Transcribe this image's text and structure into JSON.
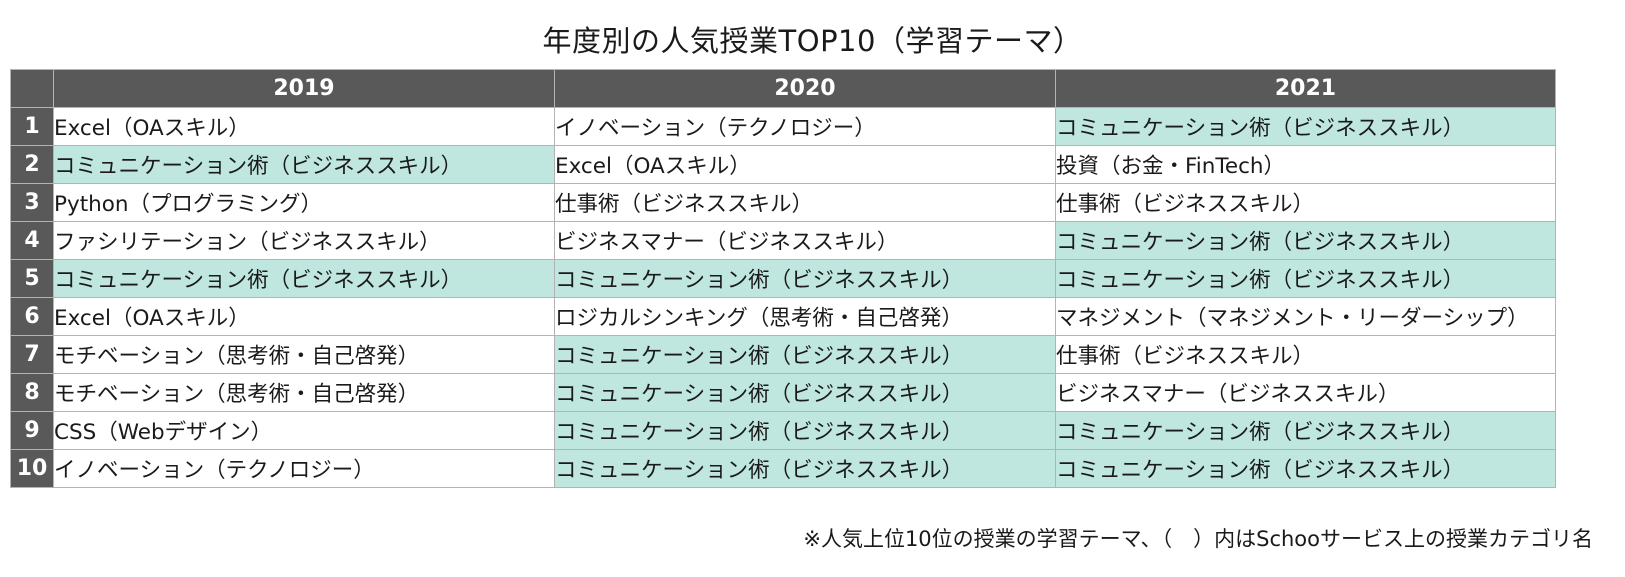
{
  "title": "年度別の人気授業TOP10（学習テーマ）",
  "colors": {
    "header_bg": "#595959",
    "header_text": "#ffffff",
    "highlight": "#bfe7e0",
    "highlight_meaning": "コミュニケーション術（ビジネススキル）"
  },
  "chart_data": {
    "type": "table",
    "title": "年度別の人気授業TOP10（学習テーマ）",
    "columns": [
      "2019",
      "2020",
      "2021"
    ],
    "rows": [
      {
        "rank": "1",
        "cells": [
          {
            "text": "Excel（OAスキル）",
            "highlight": false
          },
          {
            "text": "イノベーション（テクノロジー）",
            "highlight": false
          },
          {
            "text": "コミュニケーション術（ビジネススキル）",
            "highlight": true
          }
        ]
      },
      {
        "rank": "2",
        "cells": [
          {
            "text": "コミュニケーション術（ビジネススキル）",
            "highlight": true
          },
          {
            "text": "Excel（OAスキル）",
            "highlight": false
          },
          {
            "text": "投資（お金・FinTech）",
            "highlight": false
          }
        ]
      },
      {
        "rank": "3",
        "cells": [
          {
            "text": "Python（プログラミング）",
            "highlight": false
          },
          {
            "text": "仕事術（ビジネススキル）",
            "highlight": false
          },
          {
            "text": "仕事術（ビジネススキル）",
            "highlight": false
          }
        ]
      },
      {
        "rank": "4",
        "cells": [
          {
            "text": "ファシリテーション（ビジネススキル）",
            "highlight": false
          },
          {
            "text": "ビジネスマナー（ビジネススキル）",
            "highlight": false
          },
          {
            "text": "コミュニケーション術（ビジネススキル）",
            "highlight": true
          }
        ]
      },
      {
        "rank": "5",
        "cells": [
          {
            "text": "コミュニケーション術（ビジネススキル）",
            "highlight": true
          },
          {
            "text": "コミュニケーション術（ビジネススキル）",
            "highlight": true
          },
          {
            "text": "コミュニケーション術（ビジネススキル）",
            "highlight": true
          }
        ]
      },
      {
        "rank": "6",
        "cells": [
          {
            "text": "Excel（OAスキル）",
            "highlight": false
          },
          {
            "text": "ロジカルシンキング（思考術・自己啓発）",
            "highlight": false
          },
          {
            "text": "マネジメント（マネジメント・リーダーシップ）",
            "highlight": false
          }
        ]
      },
      {
        "rank": "7",
        "cells": [
          {
            "text": "モチベーション（思考術・自己啓発）",
            "highlight": false
          },
          {
            "text": "コミュニケーション術（ビジネススキル）",
            "highlight": true
          },
          {
            "text": "仕事術（ビジネススキル）",
            "highlight": false
          }
        ]
      },
      {
        "rank": "8",
        "cells": [
          {
            "text": "モチベーション（思考術・自己啓発）",
            "highlight": false
          },
          {
            "text": "コミュニケーション術（ビジネススキル）",
            "highlight": true
          },
          {
            "text": "ビジネスマナー（ビジネススキル）",
            "highlight": false
          }
        ]
      },
      {
        "rank": "9",
        "cells": [
          {
            "text": "CSS（Webデザイン）",
            "highlight": false
          },
          {
            "text": "コミュニケーション術（ビジネススキル）",
            "highlight": true
          },
          {
            "text": "コミュニケーション術（ビジネススキル）",
            "highlight": true
          }
        ]
      },
      {
        "rank": "10",
        "cells": [
          {
            "text": "イノベーション（テクノロジー）",
            "highlight": false
          },
          {
            "text": "コミュニケーション術（ビジネススキル）",
            "highlight": true
          },
          {
            "text": "コミュニケーション術（ビジネススキル）",
            "highlight": true
          }
        ]
      }
    ]
  },
  "footnote": "※人気上位10位の授業の学習テーマ、（　）内はSchooサービス上の授業カテゴリ名"
}
